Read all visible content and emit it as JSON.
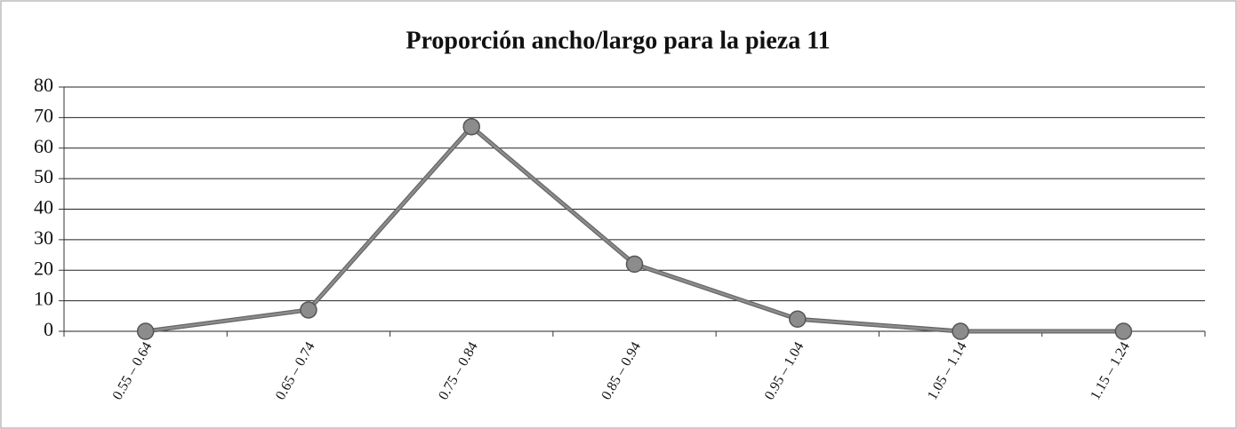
{
  "chart_data": {
    "type": "line",
    "title": "Proporción ancho/largo para la pieza 11",
    "categories": [
      "0.55 – 0.64",
      "0.65 – 0.74",
      "0.75 – 0.84",
      "0.85 – 0.94",
      "0.95 – 1.04",
      "1.05 – 1.14",
      "1.15 – 1.24"
    ],
    "values": [
      0,
      7,
      67,
      22,
      4,
      0,
      0
    ],
    "color": "#8c8c8c",
    "ylim": [
      0,
      80
    ],
    "yticks": [
      0,
      10,
      20,
      30,
      40,
      50,
      60,
      70,
      80
    ],
    "grid": true
  }
}
